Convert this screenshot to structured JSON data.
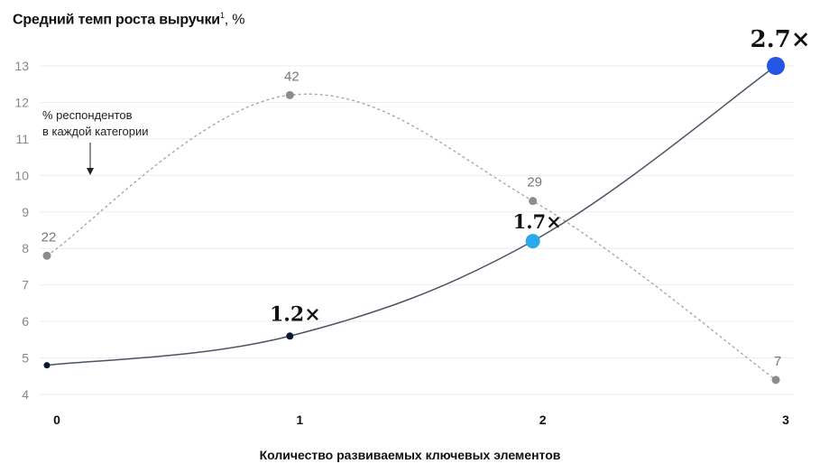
{
  "chart_data": {
    "type": "line",
    "title": "Средний темп роста выручки",
    "title_sup": "1",
    "title_unit": ", %",
    "xlabel": "Количество развиваемых ключевых элементов",
    "x": [
      0,
      1,
      2,
      3
    ],
    "x_tick_labels": [
      "0",
      "1",
      "2",
      "3"
    ],
    "y_ticks": [
      4,
      5,
      6,
      7,
      8,
      9,
      10,
      11,
      12,
      13
    ],
    "ylim": [
      4,
      13
    ],
    "grid": "horizontal",
    "series": [
      {
        "style": "solid",
        "color": "#4a5563",
        "values": [
          4.8,
          5.6,
          8.2,
          13.0
        ],
        "point_labels": [
          "",
          "1.2×",
          "1.7×",
          "2.7×"
        ],
        "point_colors": [
          "#0b1a33",
          "#0b1a33",
          "#29a9ea",
          "#2456e6"
        ]
      },
      {
        "style": "dotted",
        "color": "#a8a8a8",
        "values": [
          7.8,
          12.2,
          9.3,
          4.4
        ],
        "point_labels": [
          "22",
          "42",
          "29",
          "7"
        ]
      }
    ],
    "annotation": {
      "lines": [
        "% респондентов",
        "в каждой категории"
      ],
      "arrow": "down"
    }
  }
}
